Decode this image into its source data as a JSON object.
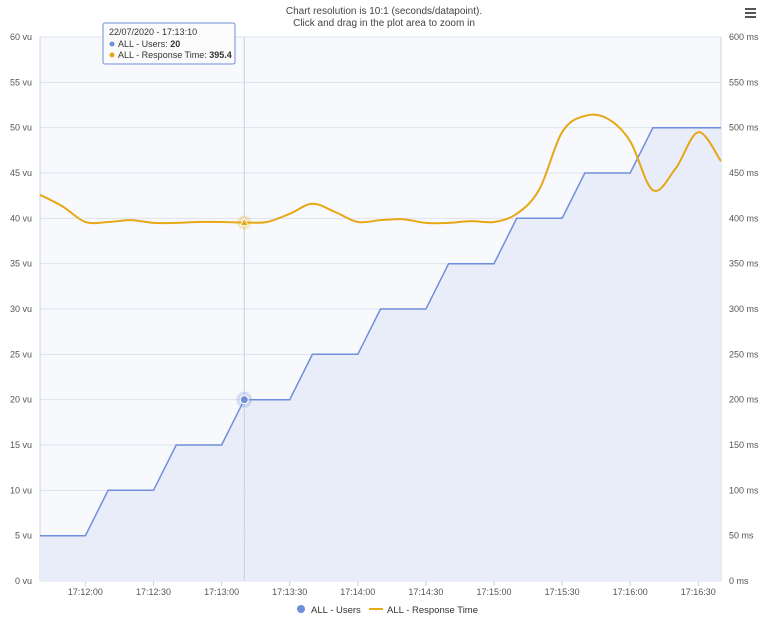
{
  "header": {
    "line1": "Chart resolution is 10:1 (seconds/datapoint).",
    "line2": "Click and drag in the plot area to zoom in"
  },
  "tooltip": {
    "date": "22/07/2020 - 17:13:10",
    "users_label": "ALL - Users: ",
    "users_value": "20",
    "rt_label": "ALL - Response Time: ",
    "rt_value": "395.4"
  },
  "menu": {
    "icon": "hamburger-menu-icon"
  },
  "colors": {
    "users": "#6f8fd8",
    "users_fill": "#e6ebf8",
    "rt": "#e6a817",
    "plot_bg": "#f8f9fc",
    "grid": "#dde3ef"
  },
  "chart_data": {
    "type": "line",
    "x_start": "17:11:40",
    "x_end": "17:16:40",
    "x_ticks": [
      "17:12:00",
      "17:12:30",
      "17:13:00",
      "17:13:30",
      "17:14:00",
      "17:14:30",
      "17:15:00",
      "17:15:30",
      "17:16:00",
      "17:16:30"
    ],
    "y_left": {
      "ylim": [
        0,
        60
      ],
      "ticks": [
        "0 vu",
        "5 vu",
        "10 vu",
        "15 vu",
        "20 vu",
        "25 vu",
        "30 vu",
        "35 vu",
        "40 vu",
        "45 vu",
        "50 vu",
        "55 vu",
        "60 vu"
      ]
    },
    "y_right": {
      "ylim": [
        0,
        600
      ],
      "ticks": [
        "0 ms",
        "50 ms",
        "100 ms",
        "150 ms",
        "200 ms",
        "250 ms",
        "300 ms",
        "350 ms",
        "400 ms",
        "450 ms",
        "500 ms",
        "550 ms",
        "600 ms"
      ]
    },
    "series": [
      {
        "name": "ALL - Users",
        "axis": "left",
        "x": [
          "17:11:40",
          "17:11:50",
          "17:12:00",
          "17:12:10",
          "17:12:20",
          "17:12:30",
          "17:12:40",
          "17:12:50",
          "17:13:00",
          "17:13:10",
          "17:13:20",
          "17:13:30",
          "17:13:40",
          "17:13:50",
          "17:14:00",
          "17:14:10",
          "17:14:20",
          "17:14:30",
          "17:14:40",
          "17:14:50",
          "17:15:00",
          "17:15:10",
          "17:15:20",
          "17:15:30",
          "17:15:40",
          "17:15:50",
          "17:16:00",
          "17:16:10",
          "17:16:20",
          "17:16:30",
          "17:16:40"
        ],
        "values": [
          5,
          5,
          5,
          10,
          10,
          10,
          15,
          15,
          15,
          20,
          20,
          20,
          25,
          25,
          25,
          30,
          30,
          30,
          35,
          35,
          35,
          40,
          40,
          40,
          45,
          45,
          45,
          50,
          50,
          50,
          50
        ]
      },
      {
        "name": "ALL - Response Time",
        "axis": "right",
        "x": [
          "17:11:40",
          "17:11:50",
          "17:12:00",
          "17:12:10",
          "17:12:20",
          "17:12:30",
          "17:12:40",
          "17:12:50",
          "17:13:00",
          "17:13:10",
          "17:13:20",
          "17:13:30",
          "17:13:40",
          "17:13:50",
          "17:14:00",
          "17:14:10",
          "17:14:20",
          "17:14:30",
          "17:14:40",
          "17:14:50",
          "17:15:00",
          "17:15:10",
          "17:15:20",
          "17:15:30",
          "17:15:40",
          "17:15:50",
          "17:16:00",
          "17:16:10",
          "17:16:20",
          "17:16:30",
          "17:16:40"
        ],
        "values": [
          426,
          413,
          396,
          396,
          398,
          395,
          395,
          396,
          396,
          395.4,
          396,
          405,
          416,
          407,
          396,
          398,
          399,
          395,
          395,
          397,
          396,
          405,
          432,
          495,
          513,
          510,
          485,
          431,
          455,
          495,
          463
        ]
      }
    ],
    "highlight": {
      "x": "17:13:10"
    }
  }
}
